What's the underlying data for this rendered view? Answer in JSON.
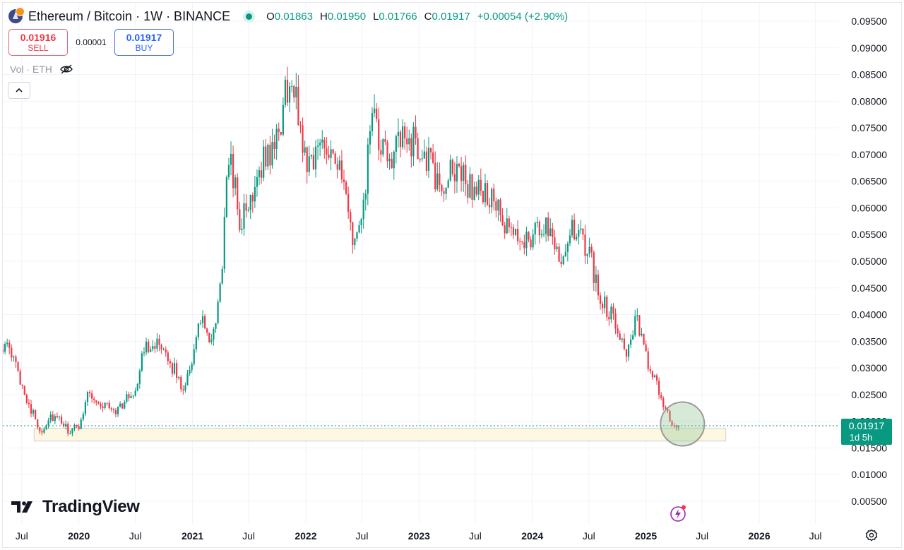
{
  "header": {
    "title": "Ethereum / Bitcoin · 1W · BINANCE",
    "ohlc": [
      {
        "key": "O",
        "value": "0.01863"
      },
      {
        "key": "H",
        "value": "0.01950"
      },
      {
        "key": "L",
        "value": "0.01766"
      },
      {
        "key": "C",
        "value": "0.01917"
      }
    ],
    "change": "+0.00054 (+2.90%)"
  },
  "trade": {
    "sell_price": "0.01916",
    "sell_label": "SELL",
    "spread": "0.00001",
    "buy_price": "0.01917",
    "buy_label": "BUY"
  },
  "volume": {
    "label": "Vol · ETH"
  },
  "branding": {
    "logo_text": "TradingView"
  },
  "price_tag": {
    "price": "0.01917",
    "countdown": "1d 5h"
  },
  "colors": {
    "up": "#089981",
    "down": "#f23645",
    "grid": "#f0f3fa",
    "support_zone_fill": "#fdf8e1",
    "support_zone_stroke": "#d6d6d6",
    "highlight_circle": "#8bc48f"
  },
  "chart_data": {
    "type": "candlestick",
    "title": "Ethereum / Bitcoin · 1W · BINANCE",
    "y_axis": {
      "side": "right",
      "ticks": [
        "0.09500",
        "0.09000",
        "0.08500",
        "0.08000",
        "0.07500",
        "0.07000",
        "0.06500",
        "0.06000",
        "0.05500",
        "0.05000",
        "0.04500",
        "0.04000",
        "0.03500",
        "0.03000",
        "0.02500",
        "0.02000",
        "0.01500",
        "0.01000",
        "0.00500"
      ],
      "range": [
        0.003,
        0.097
      ]
    },
    "x_axis": {
      "ticks": [
        "Jul",
        "2020",
        "Jul",
        "2021",
        "Jul",
        "2022",
        "Jul",
        "2023",
        "Jul",
        "2024",
        "Jul",
        "2025",
        "Jul",
        "2026",
        "Jul"
      ],
      "range": [
        "2019-05-01",
        "2026-09-15"
      ]
    },
    "grid": true,
    "series": [
      {
        "type": "weekly-close",
        "points": [
          [
            "2019-05-01",
            0.0345
          ],
          [
            "2019-06-01",
            0.032
          ],
          [
            "2019-07-01",
            0.027
          ],
          [
            "2019-08-01",
            0.022
          ],
          [
            "2019-09-01",
            0.018
          ],
          [
            "2019-10-01",
            0.021
          ],
          [
            "2019-11-01",
            0.02
          ],
          [
            "2019-12-01",
            0.018
          ],
          [
            "2020-01-01",
            0.019
          ],
          [
            "2020-02-01",
            0.026
          ],
          [
            "2020-03-01",
            0.023
          ],
          [
            "2020-04-01",
            0.023
          ],
          [
            "2020-05-01",
            0.022
          ],
          [
            "2020-06-01",
            0.024
          ],
          [
            "2020-07-01",
            0.026
          ],
          [
            "2020-08-01",
            0.034
          ],
          [
            "2020-09-01",
            0.035
          ],
          [
            "2020-10-01",
            0.032
          ],
          [
            "2020-11-01",
            0.03
          ],
          [
            "2020-12-01",
            0.026
          ],
          [
            "2021-01-01",
            0.032
          ],
          [
            "2021-02-01",
            0.04
          ],
          [
            "2021-03-01",
            0.033
          ],
          [
            "2021-04-01",
            0.045
          ],
          [
            "2021-05-01",
            0.072
          ],
          [
            "2021-06-01",
            0.057
          ],
          [
            "2021-07-01",
            0.06
          ],
          [
            "2021-08-01",
            0.068
          ],
          [
            "2021-09-01",
            0.07
          ],
          [
            "2021-10-01",
            0.072
          ],
          [
            "2021-11-01",
            0.083
          ],
          [
            "2021-12-01",
            0.08
          ],
          [
            "2022-01-01",
            0.069
          ],
          [
            "2022-02-01",
            0.07
          ],
          [
            "2022-03-01",
            0.073
          ],
          [
            "2022-04-01",
            0.071
          ],
          [
            "2022-05-01",
            0.064
          ],
          [
            "2022-06-01",
            0.054
          ],
          [
            "2022-07-01",
            0.056
          ],
          [
            "2022-08-01",
            0.078
          ],
          [
            "2022-09-01",
            0.07
          ],
          [
            "2022-10-01",
            0.07
          ],
          [
            "2022-11-01",
            0.072
          ],
          [
            "2022-12-01",
            0.073
          ],
          [
            "2023-01-01",
            0.071
          ],
          [
            "2023-02-01",
            0.069
          ],
          [
            "2023-03-01",
            0.064
          ],
          [
            "2023-04-01",
            0.065
          ],
          [
            "2023-05-01",
            0.068
          ],
          [
            "2023-06-01",
            0.065
          ],
          [
            "2023-07-01",
            0.063
          ],
          [
            "2023-08-01",
            0.063
          ],
          [
            "2023-09-01",
            0.061
          ],
          [
            "2023-10-01",
            0.056
          ],
          [
            "2023-11-01",
            0.055
          ],
          [
            "2023-12-01",
            0.054
          ],
          [
            "2024-01-01",
            0.055
          ],
          [
            "2024-02-01",
            0.056
          ],
          [
            "2024-03-01",
            0.057
          ],
          [
            "2024-04-01",
            0.05
          ],
          [
            "2024-05-01",
            0.056
          ],
          [
            "2024-06-01",
            0.054
          ],
          [
            "2024-07-01",
            0.052
          ],
          [
            "2024-08-01",
            0.044
          ],
          [
            "2024-09-01",
            0.041
          ],
          [
            "2024-10-01",
            0.038
          ],
          [
            "2024-11-01",
            0.033
          ],
          [
            "2024-12-01",
            0.039
          ],
          [
            "2025-01-01",
            0.032
          ],
          [
            "2025-02-01",
            0.027
          ],
          [
            "2025-03-01",
            0.023
          ],
          [
            "2025-04-01",
            0.019
          ],
          [
            "2025-04-20",
            0.0192
          ]
        ]
      }
    ],
    "annotations": [
      {
        "type": "support-zone",
        "y_range": [
          0.0163,
          0.0187
        ],
        "x_range": [
          "2019-08-10",
          "2025-09-15"
        ]
      },
      {
        "type": "highlight-circle",
        "x": "2025-04-15",
        "y": 0.0195
      }
    ],
    "last_price": 0.01917
  }
}
